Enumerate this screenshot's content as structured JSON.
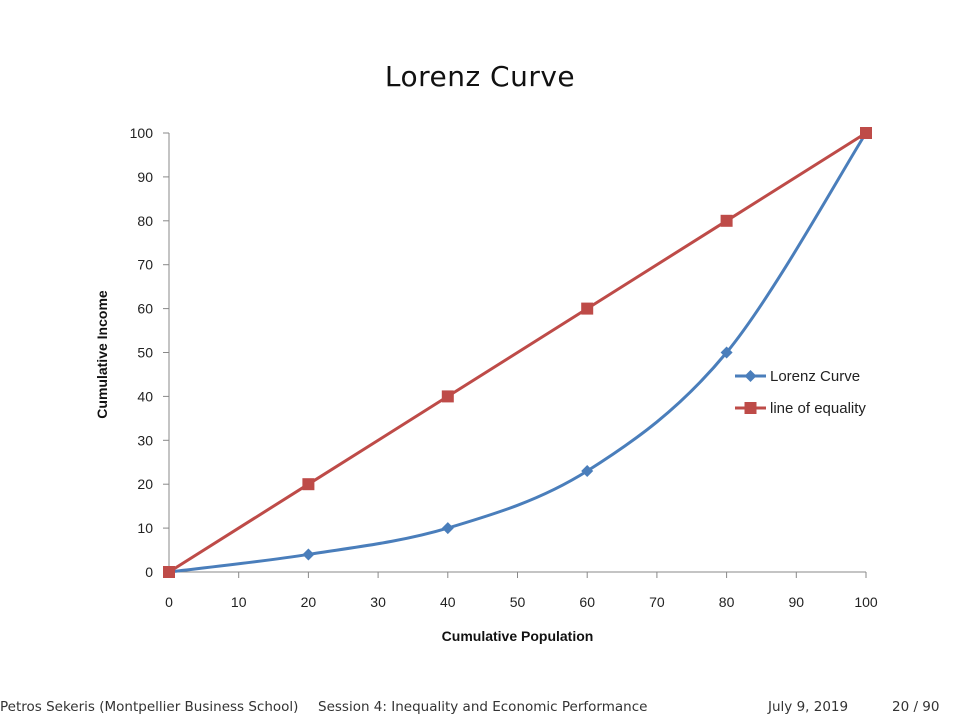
{
  "slide": {
    "footer_left": "Petros Sekeris  (Montpellier Business School)",
    "footer_center": "Session 4: Inequality and Economic Performance",
    "footer_date": "July 9, 2019",
    "footer_page": "20 / 90"
  },
  "chart_data": {
    "type": "line",
    "title": "Lorenz Curve",
    "xlabel": "Cumulative Population",
    "ylabel": "Cumulative Income",
    "x": [
      0,
      20,
      40,
      60,
      80,
      100
    ],
    "xlim": [
      0,
      100
    ],
    "ylim": [
      0,
      100
    ],
    "xticks": [
      0,
      10,
      20,
      30,
      40,
      50,
      60,
      70,
      80,
      90,
      100
    ],
    "yticks": [
      0,
      10,
      20,
      30,
      40,
      50,
      60,
      70,
      80,
      90,
      100
    ],
    "grid": false,
    "legend_position": "right",
    "series": [
      {
        "name": "Lorenz Curve",
        "values": [
          0,
          4,
          10,
          23,
          50,
          100
        ],
        "color": "#4a7ebb",
        "marker": "diamond"
      },
      {
        "name": "line of equality",
        "values": [
          0,
          20,
          40,
          60,
          80,
          100
        ],
        "color": "#be4b48",
        "marker": "square"
      }
    ]
  }
}
